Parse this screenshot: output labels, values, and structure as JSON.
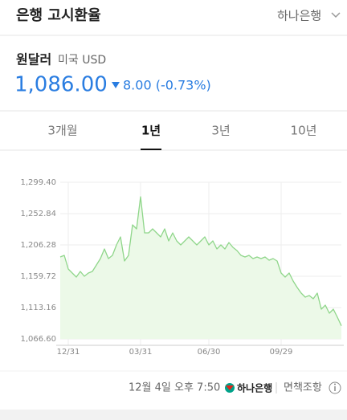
{
  "header": {
    "title": "은행 고시환율",
    "bank": "하나은행"
  },
  "summary": {
    "name": "원달러",
    "currency": "미국 USD",
    "rate": "1,086.00",
    "change": "8.00 (-0.73%)"
  },
  "tabs": [
    "3개월",
    "1년",
    "3년",
    "10년"
  ],
  "chart_data": {
    "type": "line",
    "color": "#8fd68a",
    "fill": "#ecf9e8",
    "grid": true,
    "categories": [
      null,
      null,
      "12/31",
      null,
      null,
      null,
      null,
      null,
      null,
      null,
      null,
      null,
      null,
      null,
      null,
      null,
      null,
      null,
      null,
      null,
      "03/31",
      null,
      null,
      null,
      null,
      null,
      null,
      null,
      null,
      null,
      null,
      null,
      null,
      null,
      null,
      null,
      null,
      "06/30",
      null,
      null,
      null,
      null,
      null,
      null,
      null,
      null,
      null,
      null,
      null,
      null,
      null,
      null,
      null,
      null,
      null,
      "09/29",
      null,
      null,
      null,
      null,
      null,
      null,
      null,
      null,
      null,
      null,
      null,
      null,
      null,
      null,
      null
    ],
    "values": [
      1188.4,
      1190.8,
      1170.5,
      1164.5,
      1158.5,
      1166.9,
      1159.7,
      1164.5,
      1166.9,
      1176.4,
      1186.0,
      1200.3,
      1186.0,
      1190.8,
      1206.3,
      1218.2,
      1182.4,
      1190.8,
      1236.1,
      1230.2,
      1277.9,
      1224.2,
      1224.2,
      1230.2,
      1224.2,
      1218.2,
      1230.2,
      1212.3,
      1224.2,
      1212.3,
      1206.3,
      1212.3,
      1218.2,
      1212.3,
      1206.3,
      1212.3,
      1218.2,
      1206.3,
      1212.3,
      1200.3,
      1206.3,
      1200.3,
      1209.9,
      1202.7,
      1197.9,
      1190.8,
      1188.4,
      1190.8,
      1186.0,
      1188.4,
      1186.0,
      1188.4,
      1183.6,
      1186.0,
      1182.4,
      1164.5,
      1158.5,
      1164.5,
      1152.6,
      1143.0,
      1134.7,
      1128.7,
      1131.1,
      1126.3,
      1134.7,
      1110.8,
      1116.7,
      1104.8,
      1110.8,
      1098.8,
      1086.0
    ],
    "ylim": [
      1066.6,
      1299.4
    ],
    "yticks": [
      {
        "value": 1066.6,
        "label": "1,066.60"
      },
      {
        "value": 1113.16,
        "label": "1,113.16"
      },
      {
        "value": 1159.72,
        "label": "1,159.72"
      },
      {
        "value": 1206.28,
        "label": "1,206.28"
      },
      {
        "value": 1252.84,
        "label": "1,252.84"
      },
      {
        "value": 1299.4,
        "label": "1,299.40"
      }
    ]
  },
  "footer": {
    "timestamp": "12월 4일 오후 7:50",
    "logo": "하나은행",
    "disclaimer": "면책조항"
  }
}
